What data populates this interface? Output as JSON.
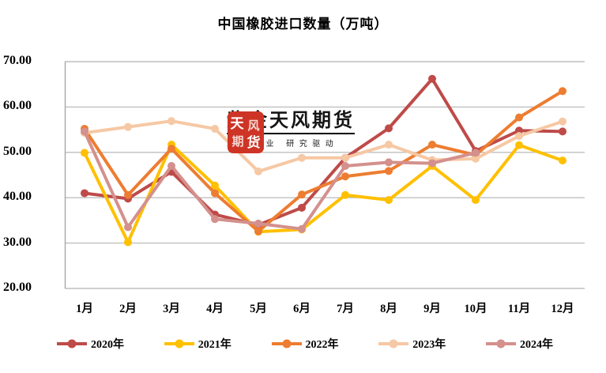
{
  "page": {
    "background": "#FFFFFF",
    "gridline_color": "#BFBFBF",
    "axis_line_color": "#A6A6A6"
  },
  "chart_data": {
    "type": "line",
    "title": "中国橡胶进口数量（万吨）",
    "categories": [
      "1月",
      "2月",
      "3月",
      "4月",
      "5月",
      "6月",
      "7月",
      "8月",
      "9月",
      "10月",
      "11月",
      "12月"
    ],
    "y_ticks": [
      "70.00",
      "60.00",
      "50.00",
      "40.00",
      "30.00",
      "20.00"
    ],
    "ylim": [
      20,
      70
    ],
    "grid": "horizontal-only",
    "legend_position": "bottom",
    "marker": "circle",
    "series": [
      {
        "name": "2020年",
        "color": "#BE4B48",
        "values": [
          41.0,
          39.8,
          45.7,
          36.3,
          34.0,
          37.8,
          48.8,
          55.3,
          66.2,
          50.3,
          54.8,
          54.6
        ]
      },
      {
        "name": "2021年",
        "color": "#FFC000",
        "values": [
          49.9,
          30.2,
          51.7,
          42.7,
          32.5,
          33.0,
          40.6,
          39.5,
          47.0,
          39.5,
          51.6,
          48.2
        ]
      },
      {
        "name": "2022年",
        "color": "#ED7D31",
        "values": [
          55.2,
          40.6,
          50.8,
          41.0,
          32.6,
          40.7,
          44.7,
          45.9,
          51.7,
          49.4,
          57.7,
          63.5
        ]
      },
      {
        "name": "2023年",
        "color": "#F6C8A4",
        "values": [
          54.3,
          55.6,
          56.9,
          55.2,
          45.8,
          48.8,
          48.8,
          51.7,
          48.3,
          48.6,
          53.6,
          56.8
        ]
      },
      {
        "name": "2024年",
        "color": "#D4908D",
        "values": [
          54.6,
          33.5,
          47.0,
          35.3,
          34.3,
          33.1,
          47.0,
          47.8,
          47.6,
          49.9,
          null,
          null
        ]
      }
    ]
  },
  "watermark": {
    "company": "紫金天风期货",
    "slogan": "立足产业 研究驱动",
    "seal_text": "天风",
    "seal_color": "#CE3426"
  }
}
